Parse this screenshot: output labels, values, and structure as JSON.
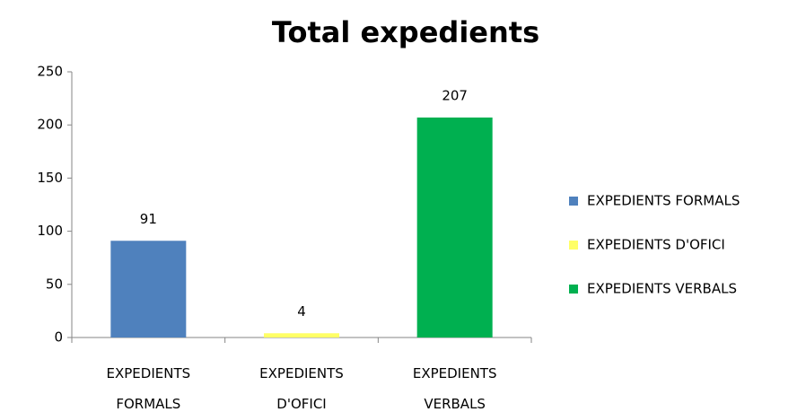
{
  "chart_data": {
    "type": "bar",
    "title": "Total expedients",
    "categories": [
      "EXPEDIENTS FORMALS",
      "EXPEDIENTS D'OFICI",
      "EXPEDIENTS VERBALS"
    ],
    "values": [
      91,
      4,
      207
    ],
    "colors": [
      "#4f81bd",
      "#ffff66",
      "#00b050"
    ],
    "ylim": [
      0,
      250
    ],
    "yticks": [
      0,
      50,
      100,
      150,
      200,
      250
    ],
    "legend": "right"
  }
}
